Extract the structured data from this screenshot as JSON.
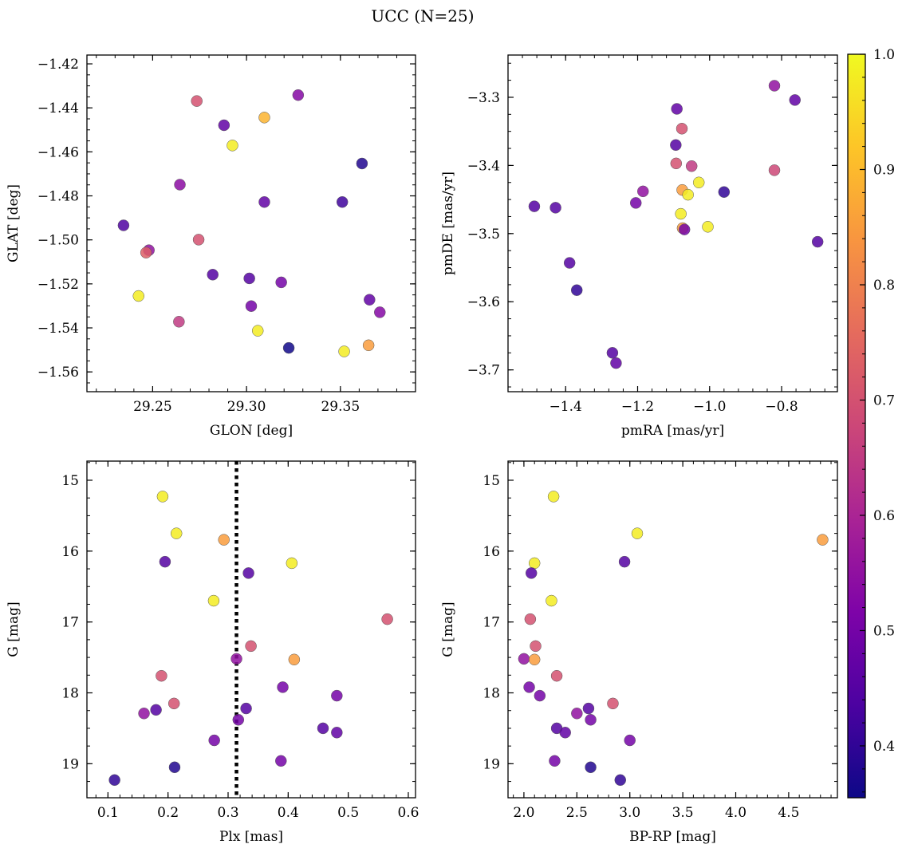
{
  "figure": {
    "title": "UCC (N=25)"
  },
  "colorbar": {
    "min": 0.355,
    "max": 1.0,
    "ticks": [
      "0.4",
      "0.5",
      "0.6",
      "0.7",
      "0.8",
      "0.9",
      "1.0"
    ],
    "colormap": "plasma"
  },
  "chart_data": [
    {
      "type": "scatter",
      "name": "glon-glat",
      "xlabel": "GLON [deg]",
      "ylabel": "GLAT [deg]",
      "xlim": [
        29.215,
        29.39
      ],
      "ylim": [
        -1.569,
        -1.416
      ],
      "y_inverted": false,
      "xticks": [
        "29.25",
        "29.30",
        "29.35"
      ],
      "yticks": [
        "-1.56",
        "-1.54",
        "-1.52",
        "-1.50",
        "-1.48",
        "-1.46",
        "-1.44",
        "-1.42"
      ],
      "points": [
        {
          "x": 29.2735,
          "y": -1.4369,
          "p": 0.7
        },
        {
          "x": 29.3275,
          "y": -1.4342,
          "p": 0.53
        },
        {
          "x": 29.288,
          "y": -1.4479,
          "p": 0.47
        },
        {
          "x": 29.3095,
          "y": -1.4444,
          "p": 0.89
        },
        {
          "x": 29.2925,
          "y": -1.4571,
          "p": 0.98
        },
        {
          "x": 29.3615,
          "y": -1.4653,
          "p": 0.38
        },
        {
          "x": 29.2645,
          "y": -1.4749,
          "p": 0.54
        },
        {
          "x": 29.3095,
          "y": -1.4828,
          "p": 0.47
        },
        {
          "x": 29.351,
          "y": -1.4828,
          "p": 0.42
        },
        {
          "x": 29.2345,
          "y": -1.4934,
          "p": 0.44
        },
        {
          "x": 29.2745,
          "y": -1.4999,
          "p": 0.7
        },
        {
          "x": 29.248,
          "y": -1.5047,
          "p": 0.55
        },
        {
          "x": 29.2465,
          "y": -1.5058,
          "p": 0.73
        },
        {
          "x": 29.282,
          "y": -1.5158,
          "p": 0.45
        },
        {
          "x": 29.3015,
          "y": -1.5175,
          "p": 0.45
        },
        {
          "x": 29.3185,
          "y": -1.5193,
          "p": 0.5
        },
        {
          "x": 29.2425,
          "y": -1.5255,
          "p": 0.98
        },
        {
          "x": 29.3655,
          "y": -1.5272,
          "p": 0.47
        },
        {
          "x": 29.3025,
          "y": -1.5301,
          "p": 0.5
        },
        {
          "x": 29.371,
          "y": -1.5329,
          "p": 0.53
        },
        {
          "x": 29.264,
          "y": -1.5372,
          "p": 0.65
        },
        {
          "x": 29.306,
          "y": -1.5413,
          "p": 0.98
        },
        {
          "x": 29.3225,
          "y": -1.5491,
          "p": 0.36
        },
        {
          "x": 29.365,
          "y": -1.5479,
          "p": 0.85
        },
        {
          "x": 29.352,
          "y": -1.5507,
          "p": 0.98
        }
      ]
    },
    {
      "type": "scatter",
      "name": "pmra-pmde",
      "xlabel": "pmRA [mas/yr]",
      "ylabel": "pmDE [mas/yr]",
      "xlim": [
        -1.56,
        -0.645
      ],
      "ylim": [
        -3.732,
        -3.238
      ],
      "y_inverted": false,
      "xticks": [
        "-1.4",
        "-1.2",
        "-1.0",
        "-0.8"
      ],
      "yticks": [
        "-3.7",
        "-3.6",
        "-3.5",
        "-3.4",
        "-3.3"
      ],
      "points": [
        {
          "x": -0.82,
          "y": -3.283,
          "p": 0.55
        },
        {
          "x": -0.763,
          "y": -3.304,
          "p": 0.47
        },
        {
          "x": -1.091,
          "y": -3.317,
          "p": 0.47
        },
        {
          "x": -1.077,
          "y": -3.346,
          "p": 0.7
        },
        {
          "x": -1.094,
          "y": -3.37,
          "p": 0.45
        },
        {
          "x": -1.093,
          "y": -3.397,
          "p": 0.7
        },
        {
          "x": -1.05,
          "y": -3.401,
          "p": 0.65
        },
        {
          "x": -0.82,
          "y": -3.407,
          "p": 0.68
        },
        {
          "x": -1.03,
          "y": -3.425,
          "p": 0.98
        },
        {
          "x": -1.076,
          "y": -3.436,
          "p": 0.85
        },
        {
          "x": -1.185,
          "y": -3.438,
          "p": 0.55
        },
        {
          "x": -0.96,
          "y": -3.439,
          "p": 0.4
        },
        {
          "x": -1.06,
          "y": -3.443,
          "p": 0.98
        },
        {
          "x": -1.205,
          "y": -3.455,
          "p": 0.5
        },
        {
          "x": -1.487,
          "y": -3.46,
          "p": 0.45
        },
        {
          "x": -1.428,
          "y": -3.462,
          "p": 0.45
        },
        {
          "x": -1.08,
          "y": -3.471,
          "p": 0.98
        },
        {
          "x": -1.005,
          "y": -3.49,
          "p": 0.98
        },
        {
          "x": -1.075,
          "y": -3.492,
          "p": 0.85
        },
        {
          "x": -1.07,
          "y": -3.494,
          "p": 0.5
        },
        {
          "x": -0.7,
          "y": -3.512,
          "p": 0.45
        },
        {
          "x": -1.389,
          "y": -3.543,
          "p": 0.45
        },
        {
          "x": -1.369,
          "y": -3.583,
          "p": 0.4
        },
        {
          "x": -1.27,
          "y": -3.675,
          "p": 0.45
        },
        {
          "x": -1.26,
          "y": -3.69,
          "p": 0.47
        }
      ]
    },
    {
      "type": "scatter",
      "name": "plx-g",
      "xlabel": "Plx [mas]",
      "ylabel": "G [mag]",
      "xlim": [
        0.065,
        0.612
      ],
      "ylim": [
        19.48,
        14.73
      ],
      "y_inverted": true,
      "xticks": [
        "0.1",
        "0.2",
        "0.3",
        "0.4",
        "0.5",
        "0.6"
      ],
      "yticks": [
        "15",
        "16",
        "17",
        "18",
        "19"
      ],
      "vline": 0.314,
      "points": [
        {
          "x": 0.191,
          "y": 15.23,
          "p": 0.98
        },
        {
          "x": 0.214,
          "y": 15.75,
          "p": 0.98
        },
        {
          "x": 0.293,
          "y": 15.84,
          "p": 0.85
        },
        {
          "x": 0.406,
          "y": 16.17,
          "p": 0.98
        },
        {
          "x": 0.195,
          "y": 16.15,
          "p": 0.45
        },
        {
          "x": 0.334,
          "y": 16.31,
          "p": 0.45
        },
        {
          "x": 0.276,
          "y": 16.7,
          "p": 0.98
        },
        {
          "x": 0.565,
          "y": 16.96,
          "p": 0.7
        },
        {
          "x": 0.338,
          "y": 17.34,
          "p": 0.7
        },
        {
          "x": 0.314,
          "y": 17.52,
          "p": 0.55
        },
        {
          "x": 0.41,
          "y": 17.53,
          "p": 0.85
        },
        {
          "x": 0.189,
          "y": 17.76,
          "p": 0.7
        },
        {
          "x": 0.391,
          "y": 17.92,
          "p": 0.5
        },
        {
          "x": 0.481,
          "y": 18.04,
          "p": 0.5
        },
        {
          "x": 0.21,
          "y": 18.15,
          "p": 0.7
        },
        {
          "x": 0.33,
          "y": 18.22,
          "p": 0.45
        },
        {
          "x": 0.18,
          "y": 18.24,
          "p": 0.45
        },
        {
          "x": 0.16,
          "y": 18.29,
          "p": 0.55
        },
        {
          "x": 0.317,
          "y": 18.38,
          "p": 0.5
        },
        {
          "x": 0.458,
          "y": 18.5,
          "p": 0.45
        },
        {
          "x": 0.481,
          "y": 18.56,
          "p": 0.47
        },
        {
          "x": 0.277,
          "y": 18.67,
          "p": 0.5
        },
        {
          "x": 0.388,
          "y": 18.96,
          "p": 0.5
        },
        {
          "x": 0.211,
          "y": 19.05,
          "p": 0.38
        },
        {
          "x": 0.111,
          "y": 19.23,
          "p": 0.4
        }
      ]
    },
    {
      "type": "scatter",
      "name": "bprp-g",
      "xlabel": "BP-RP [mag]",
      "ylabel": "G [mag]",
      "xlim": [
        1.85,
        4.96
      ],
      "ylim": [
        19.48,
        14.73
      ],
      "y_inverted": true,
      "xticks": [
        "2.0",
        "2.5",
        "3.0",
        "3.5",
        "4.0",
        "4.5"
      ],
      "yticks": [
        "15",
        "16",
        "17",
        "18",
        "19"
      ],
      "points": [
        {
          "x": 2.28,
          "y": 15.23,
          "p": 0.98
        },
        {
          "x": 3.07,
          "y": 15.75,
          "p": 0.98
        },
        {
          "x": 4.82,
          "y": 15.84,
          "p": 0.85
        },
        {
          "x": 2.1,
          "y": 16.17,
          "p": 0.98
        },
        {
          "x": 2.95,
          "y": 16.15,
          "p": 0.45
        },
        {
          "x": 2.07,
          "y": 16.31,
          "p": 0.45
        },
        {
          "x": 2.26,
          "y": 16.7,
          "p": 0.98
        },
        {
          "x": 2.06,
          "y": 16.96,
          "p": 0.7
        },
        {
          "x": 2.11,
          "y": 17.34,
          "p": 0.7
        },
        {
          "x": 2.0,
          "y": 17.52,
          "p": 0.55
        },
        {
          "x": 2.1,
          "y": 17.53,
          "p": 0.85
        },
        {
          "x": 2.31,
          "y": 17.76,
          "p": 0.7
        },
        {
          "x": 2.05,
          "y": 17.92,
          "p": 0.5
        },
        {
          "x": 2.15,
          "y": 18.04,
          "p": 0.5
        },
        {
          "x": 2.84,
          "y": 18.15,
          "p": 0.7
        },
        {
          "x": 2.61,
          "y": 18.22,
          "p": 0.45
        },
        {
          "x": 2.5,
          "y": 18.29,
          "p": 0.55
        },
        {
          "x": 2.63,
          "y": 18.38,
          "p": 0.5
        },
        {
          "x": 2.31,
          "y": 18.5,
          "p": 0.45
        },
        {
          "x": 2.39,
          "y": 18.56,
          "p": 0.47
        },
        {
          "x": 3.0,
          "y": 18.67,
          "p": 0.5
        },
        {
          "x": 2.29,
          "y": 18.96,
          "p": 0.5
        },
        {
          "x": 2.63,
          "y": 19.05,
          "p": 0.38
        },
        {
          "x": 2.91,
          "y": 19.23,
          "p": 0.4
        }
      ]
    }
  ]
}
